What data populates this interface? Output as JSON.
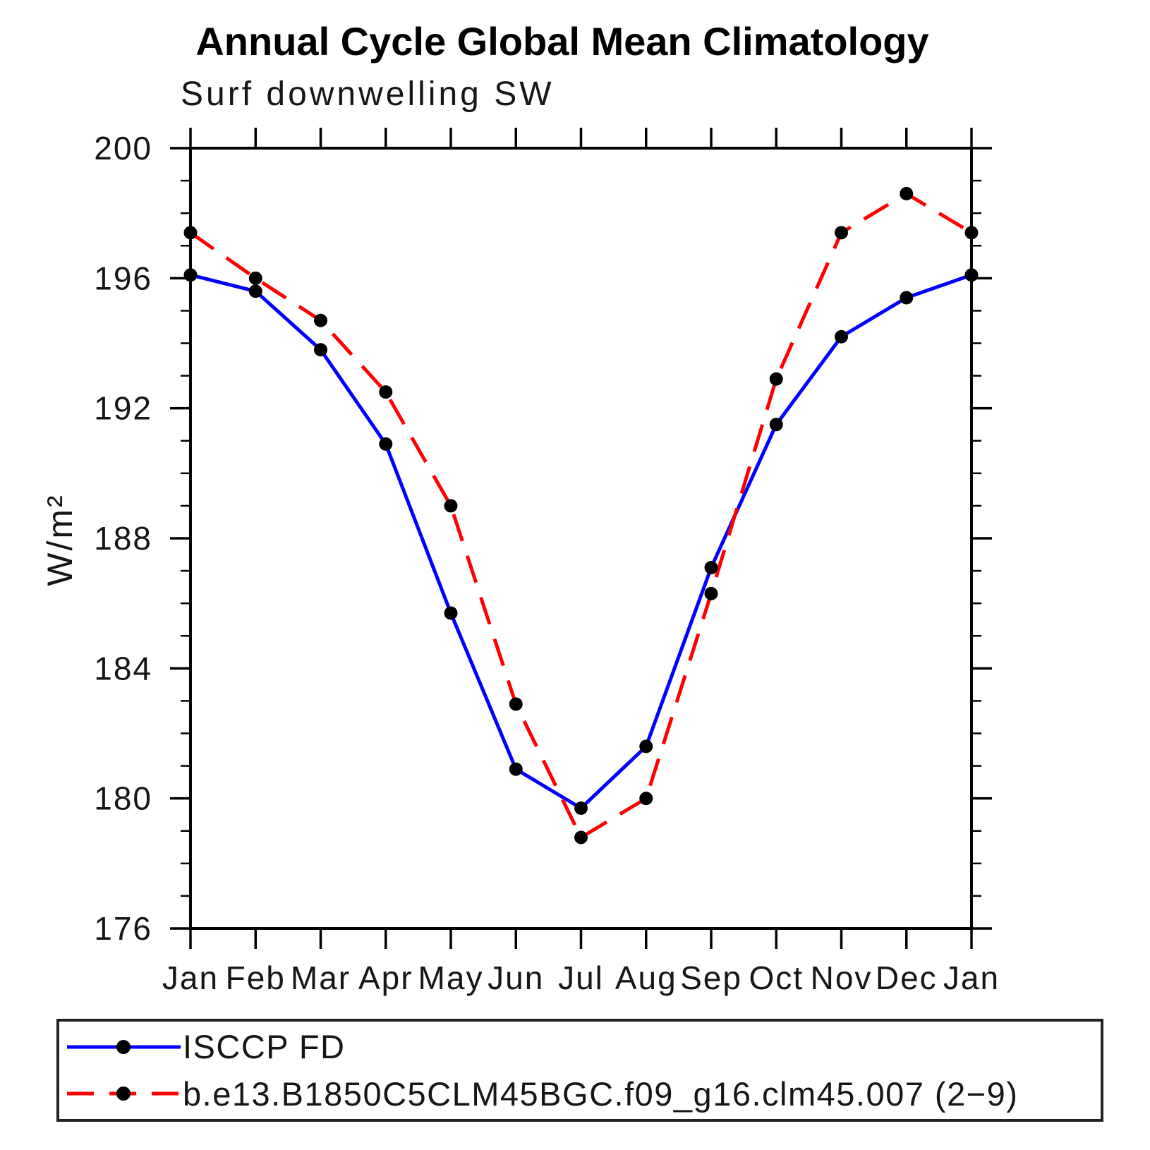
{
  "header": {
    "title": "Annual Cycle Global Mean Climatology",
    "subtitle": "Surf downwelling SW"
  },
  "chart_data": {
    "type": "line",
    "title": "Annual Cycle Global Mean Climatology",
    "subtitle": "Surf downwelling SW",
    "xlabel": "",
    "ylabel": "W/m²",
    "categories": [
      "Jan",
      "Feb",
      "Mar",
      "Apr",
      "May",
      "Jun",
      "Jul",
      "Aug",
      "Sep",
      "Oct",
      "Nov",
      "Dec",
      "Jan"
    ],
    "ylim": [
      176,
      200
    ],
    "ytick_major_interval": 4,
    "ytick_minor_interval": 1,
    "ytick_labels": [
      "176",
      "180",
      "184",
      "188",
      "192",
      "196",
      "200"
    ],
    "grid": false,
    "legend_position": "bottom-left-box",
    "series": [
      {
        "name": "ISCCP FD",
        "color": "#0000ff",
        "line_style": "solid",
        "marker": "filled-circle",
        "marker_color": "#000000",
        "values": [
          196.1,
          195.6,
          193.8,
          190.9,
          185.7,
          180.9,
          179.7,
          181.6,
          187.1,
          191.5,
          194.2,
          195.4,
          196.1
        ]
      },
      {
        "name": "b.e13.B1850C5CLM45BGC.f09_g16.clm45.007 (2−9)",
        "color": "#ff0000",
        "line_style": "dashed",
        "marker": "filled-circle",
        "marker_color": "#000000",
        "values": [
          197.4,
          196.0,
          194.7,
          192.5,
          189.0,
          182.9,
          178.8,
          180.0,
          186.3,
          192.9,
          197.4,
          198.6,
          197.4
        ]
      }
    ]
  }
}
